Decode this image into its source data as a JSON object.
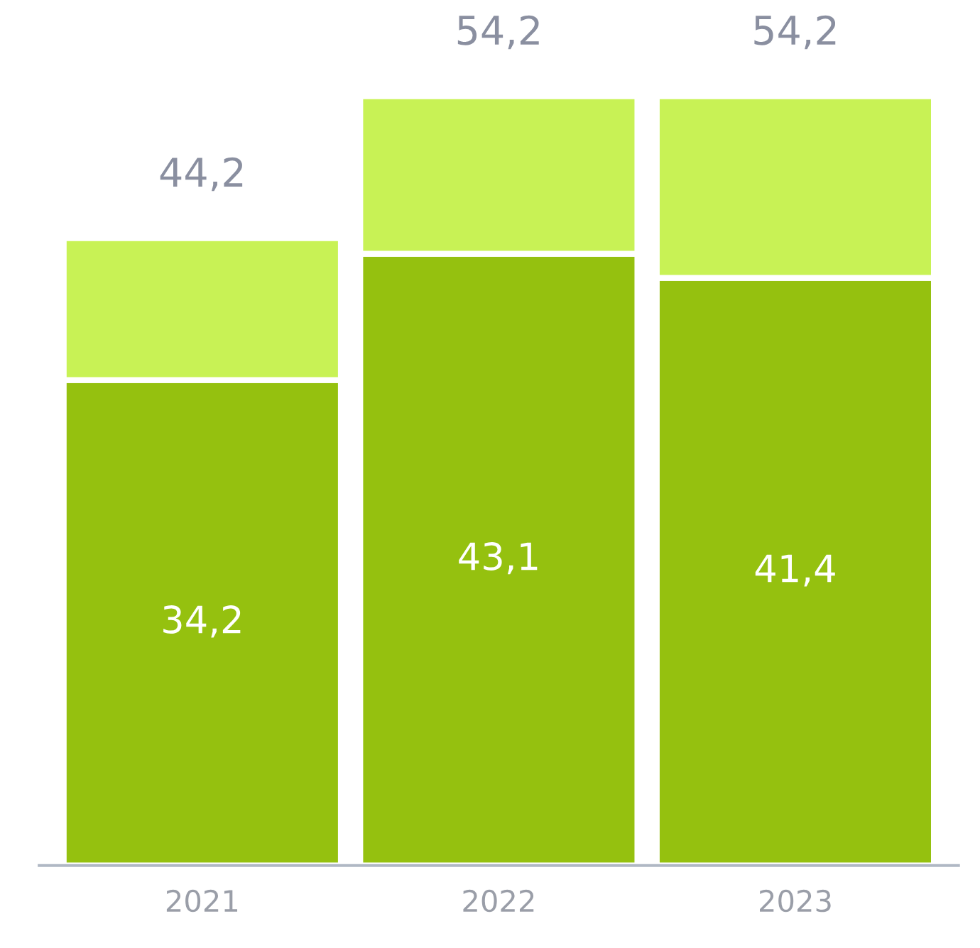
{
  "chart_data": {
    "type": "bar",
    "stacked": true,
    "categories": [
      "2021",
      "2022",
      "2023"
    ],
    "series": [
      {
        "color": "#95c10f",
        "values": [
          34.2,
          43.1,
          41.4
        ],
        "value_labels": [
          "34,2",
          "43,1",
          "41,4"
        ]
      },
      {
        "color": "#c8f255",
        "values": [
          10.0,
          11.1,
          12.8
        ]
      }
    ],
    "totals": [
      "44,2",
      "54,2",
      "54,2"
    ],
    "grid": false,
    "legend": false
  }
}
